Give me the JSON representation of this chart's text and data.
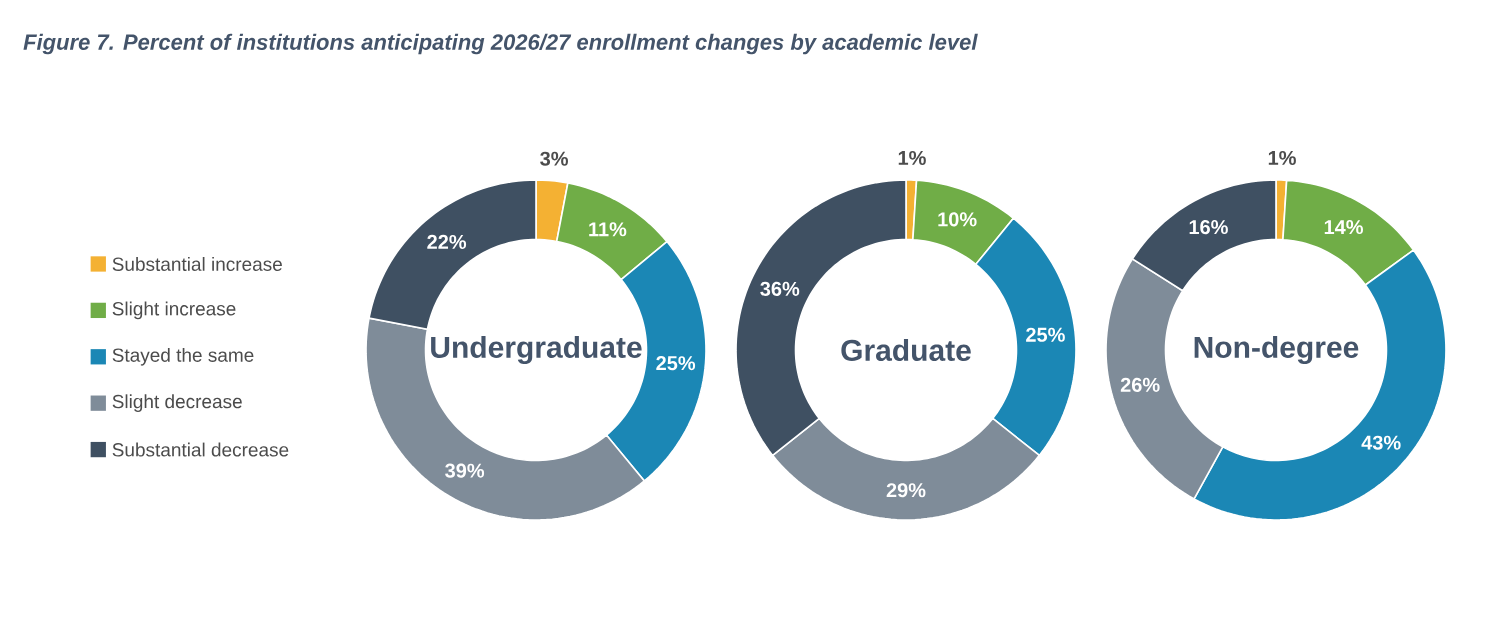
{
  "chart_data": [
    {
      "type": "donut",
      "title": "Figure 7. Percent of institutions anticipating 2026/27 enrollment changes by academic level",
      "annotations": [
        "Undergraduate"
      ],
      "legend": "left",
      "categories": [
        "Substantial increase",
        "Slight increase",
        "Stayed the same",
        "Slight decrease",
        "Substantial decrease"
      ],
      "values": [
        3,
        11,
        25,
        39,
        22
      ],
      "value_labels": [
        "3%",
        "11%",
        "25%",
        "39%",
        "22%"
      ],
      "colors": [
        "#f4b133",
        "#70ad47",
        "#1b87b5",
        "#7f8c99",
        "#3f5062"
      ]
    },
    {
      "type": "donut",
      "annotations": [
        "Graduate"
      ],
      "values": [
        1,
        10,
        25,
        29,
        36
      ],
      "value_labels": [
        "1%",
        "10%",
        "25%",
        "29%",
        "36%"
      ],
      "colors": [
        "#f4b133",
        "#70ad47",
        "#1b87b5",
        "#7f8c99",
        "#3f5062"
      ]
    },
    {
      "type": "donut",
      "annotations": [
        "Non-degree"
      ],
      "values": [
        1,
        14,
        43,
        26,
        16
      ],
      "value_labels": [
        "1%",
        "14%",
        "43%",
        "26%",
        "16%"
      ],
      "colors": [
        "#f4b133",
        "#70ad47",
        "#1b87b5",
        "#7f8c99",
        "#3f5062"
      ]
    }
  ]
}
